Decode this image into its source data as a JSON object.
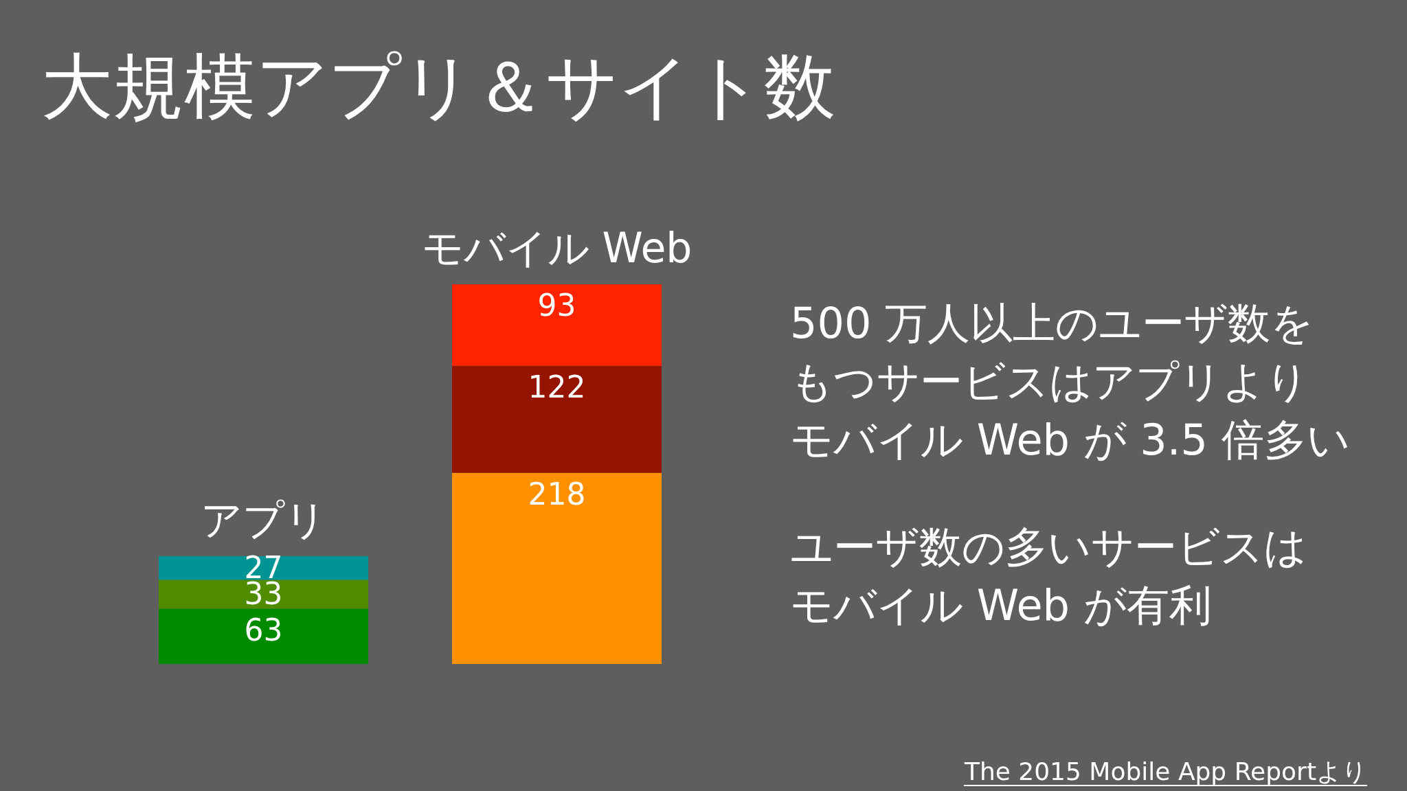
{
  "chart_data": {
    "type": "bar",
    "title": "大規模アプリ＆サイト数",
    "stacked": true,
    "data_labels": true,
    "categories": [
      "アプリ",
      "モバイル Web"
    ],
    "series": [
      {
        "values": [
          63,
          218
        ],
        "colors": [
          "#008a00",
          "#ff9100"
        ]
      },
      {
        "values": [
          33,
          122
        ],
        "colors": [
          "#4f8c00",
          "#951400"
        ]
      },
      {
        "values": [
          27,
          93
        ],
        "colors": [
          "#009494",
          "#ff2400"
        ]
      }
    ],
    "annotations": [
      "500 万人以上のユーザ数を",
      "もつサービスはアプリより",
      "モバイル Web が 3.5 倍多い",
      "ユーザ数の多いサービスは",
      "モバイル Web が有利",
      "The 2015 Mobile App Reportより"
    ]
  }
}
